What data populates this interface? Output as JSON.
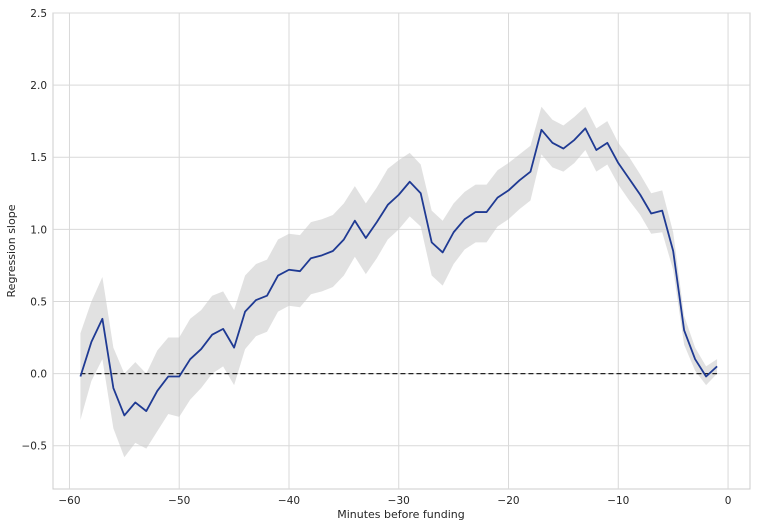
{
  "chart_data": {
    "type": "line",
    "title": "",
    "xlabel": "Minutes before funding",
    "ylabel": "Regression slope",
    "xlim": [
      -61.5,
      2
    ],
    "ylim": [
      -0.8,
      2.5
    ],
    "xticks": [
      -60,
      -50,
      -40,
      -30,
      -20,
      -10,
      0
    ],
    "xtick_labels": [
      "−60",
      "−50",
      "−40",
      "−30",
      "−20",
      "−10",
      "0"
    ],
    "yticks": [
      -0.5,
      0.0,
      0.5,
      1.0,
      1.5,
      2.0,
      2.5
    ],
    "ytick_labels": [
      "−0.5",
      "0.0",
      "0.5",
      "1.0",
      "1.5",
      "2.0",
      "2.5"
    ],
    "grid": true,
    "style": "whitegrid",
    "x": [
      -59,
      -58,
      -57,
      -56,
      -55,
      -54,
      -53,
      -52,
      -51,
      -50,
      -49,
      -48,
      -47,
      -46,
      -45,
      -44,
      -43,
      -42,
      -41,
      -40,
      -39,
      -38,
      -37,
      -36,
      -35,
      -34,
      -33,
      -32,
      -31,
      -30,
      -29,
      -28,
      -27,
      -26,
      -25,
      -24,
      -23,
      -22,
      -21,
      -20,
      -19,
      -18,
      -17,
      -16,
      -15,
      -14,
      -13,
      -12,
      -11,
      -10,
      -9,
      -8,
      -7,
      -6,
      -5,
      -4,
      -3,
      -2,
      -1
    ],
    "series": [
      {
        "values": [
          -0.02,
          0.22,
          0.38,
          -0.1,
          -0.29,
          -0.2,
          -0.26,
          -0.12,
          -0.02,
          -0.02,
          0.1,
          0.17,
          0.27,
          0.31,
          0.18,
          0.43,
          0.51,
          0.54,
          0.68,
          0.72,
          0.71,
          0.8,
          0.82,
          0.85,
          0.93,
          1.06,
          0.94,
          1.05,
          1.17,
          1.24,
          1.33,
          1.25,
          0.91,
          0.84,
          0.98,
          1.07,
          1.12,
          1.12,
          1.22,
          1.27,
          1.34,
          1.4,
          1.69,
          1.6,
          1.56,
          1.62,
          1.7,
          1.55,
          1.6,
          1.46,
          1.35,
          1.24,
          1.11,
          1.13,
          0.85,
          0.3,
          0.1,
          -0.02,
          0.05
        ],
        "lower": [
          -0.32,
          -0.05,
          0.1,
          -0.38,
          -0.58,
          -0.48,
          -0.52,
          -0.4,
          -0.28,
          -0.3,
          -0.18,
          -0.1,
          0.0,
          0.05,
          -0.08,
          0.17,
          0.26,
          0.29,
          0.43,
          0.47,
          0.46,
          0.55,
          0.57,
          0.6,
          0.68,
          0.81,
          0.69,
          0.8,
          0.93,
          1.0,
          1.09,
          1.02,
          0.68,
          0.61,
          0.76,
          0.86,
          0.91,
          0.91,
          1.02,
          1.07,
          1.14,
          1.2,
          1.52,
          1.43,
          1.4,
          1.46,
          1.55,
          1.4,
          1.45,
          1.31,
          1.2,
          1.1,
          0.97,
          0.98,
          0.72,
          0.2,
          0.02,
          -0.08,
          0.0
        ],
        "upper": [
          0.28,
          0.5,
          0.67,
          0.18,
          0.0,
          0.08,
          0.0,
          0.16,
          0.25,
          0.25,
          0.38,
          0.44,
          0.54,
          0.57,
          0.44,
          0.68,
          0.76,
          0.79,
          0.93,
          0.97,
          0.96,
          1.05,
          1.07,
          1.1,
          1.18,
          1.3,
          1.18,
          1.29,
          1.42,
          1.48,
          1.53,
          1.45,
          1.13,
          1.06,
          1.18,
          1.26,
          1.31,
          1.31,
          1.41,
          1.46,
          1.52,
          1.58,
          1.85,
          1.76,
          1.72,
          1.78,
          1.85,
          1.7,
          1.75,
          1.6,
          1.5,
          1.38,
          1.25,
          1.27,
          0.98,
          0.4,
          0.18,
          0.05,
          0.1
        ],
        "color": "#1f3a93"
      }
    ],
    "band_color": "#c8c8c8",
    "reference_line": {
      "y": 0.0,
      "x_from": -59,
      "x_to": -1,
      "style": "dashed",
      "color": "#222222"
    }
  }
}
